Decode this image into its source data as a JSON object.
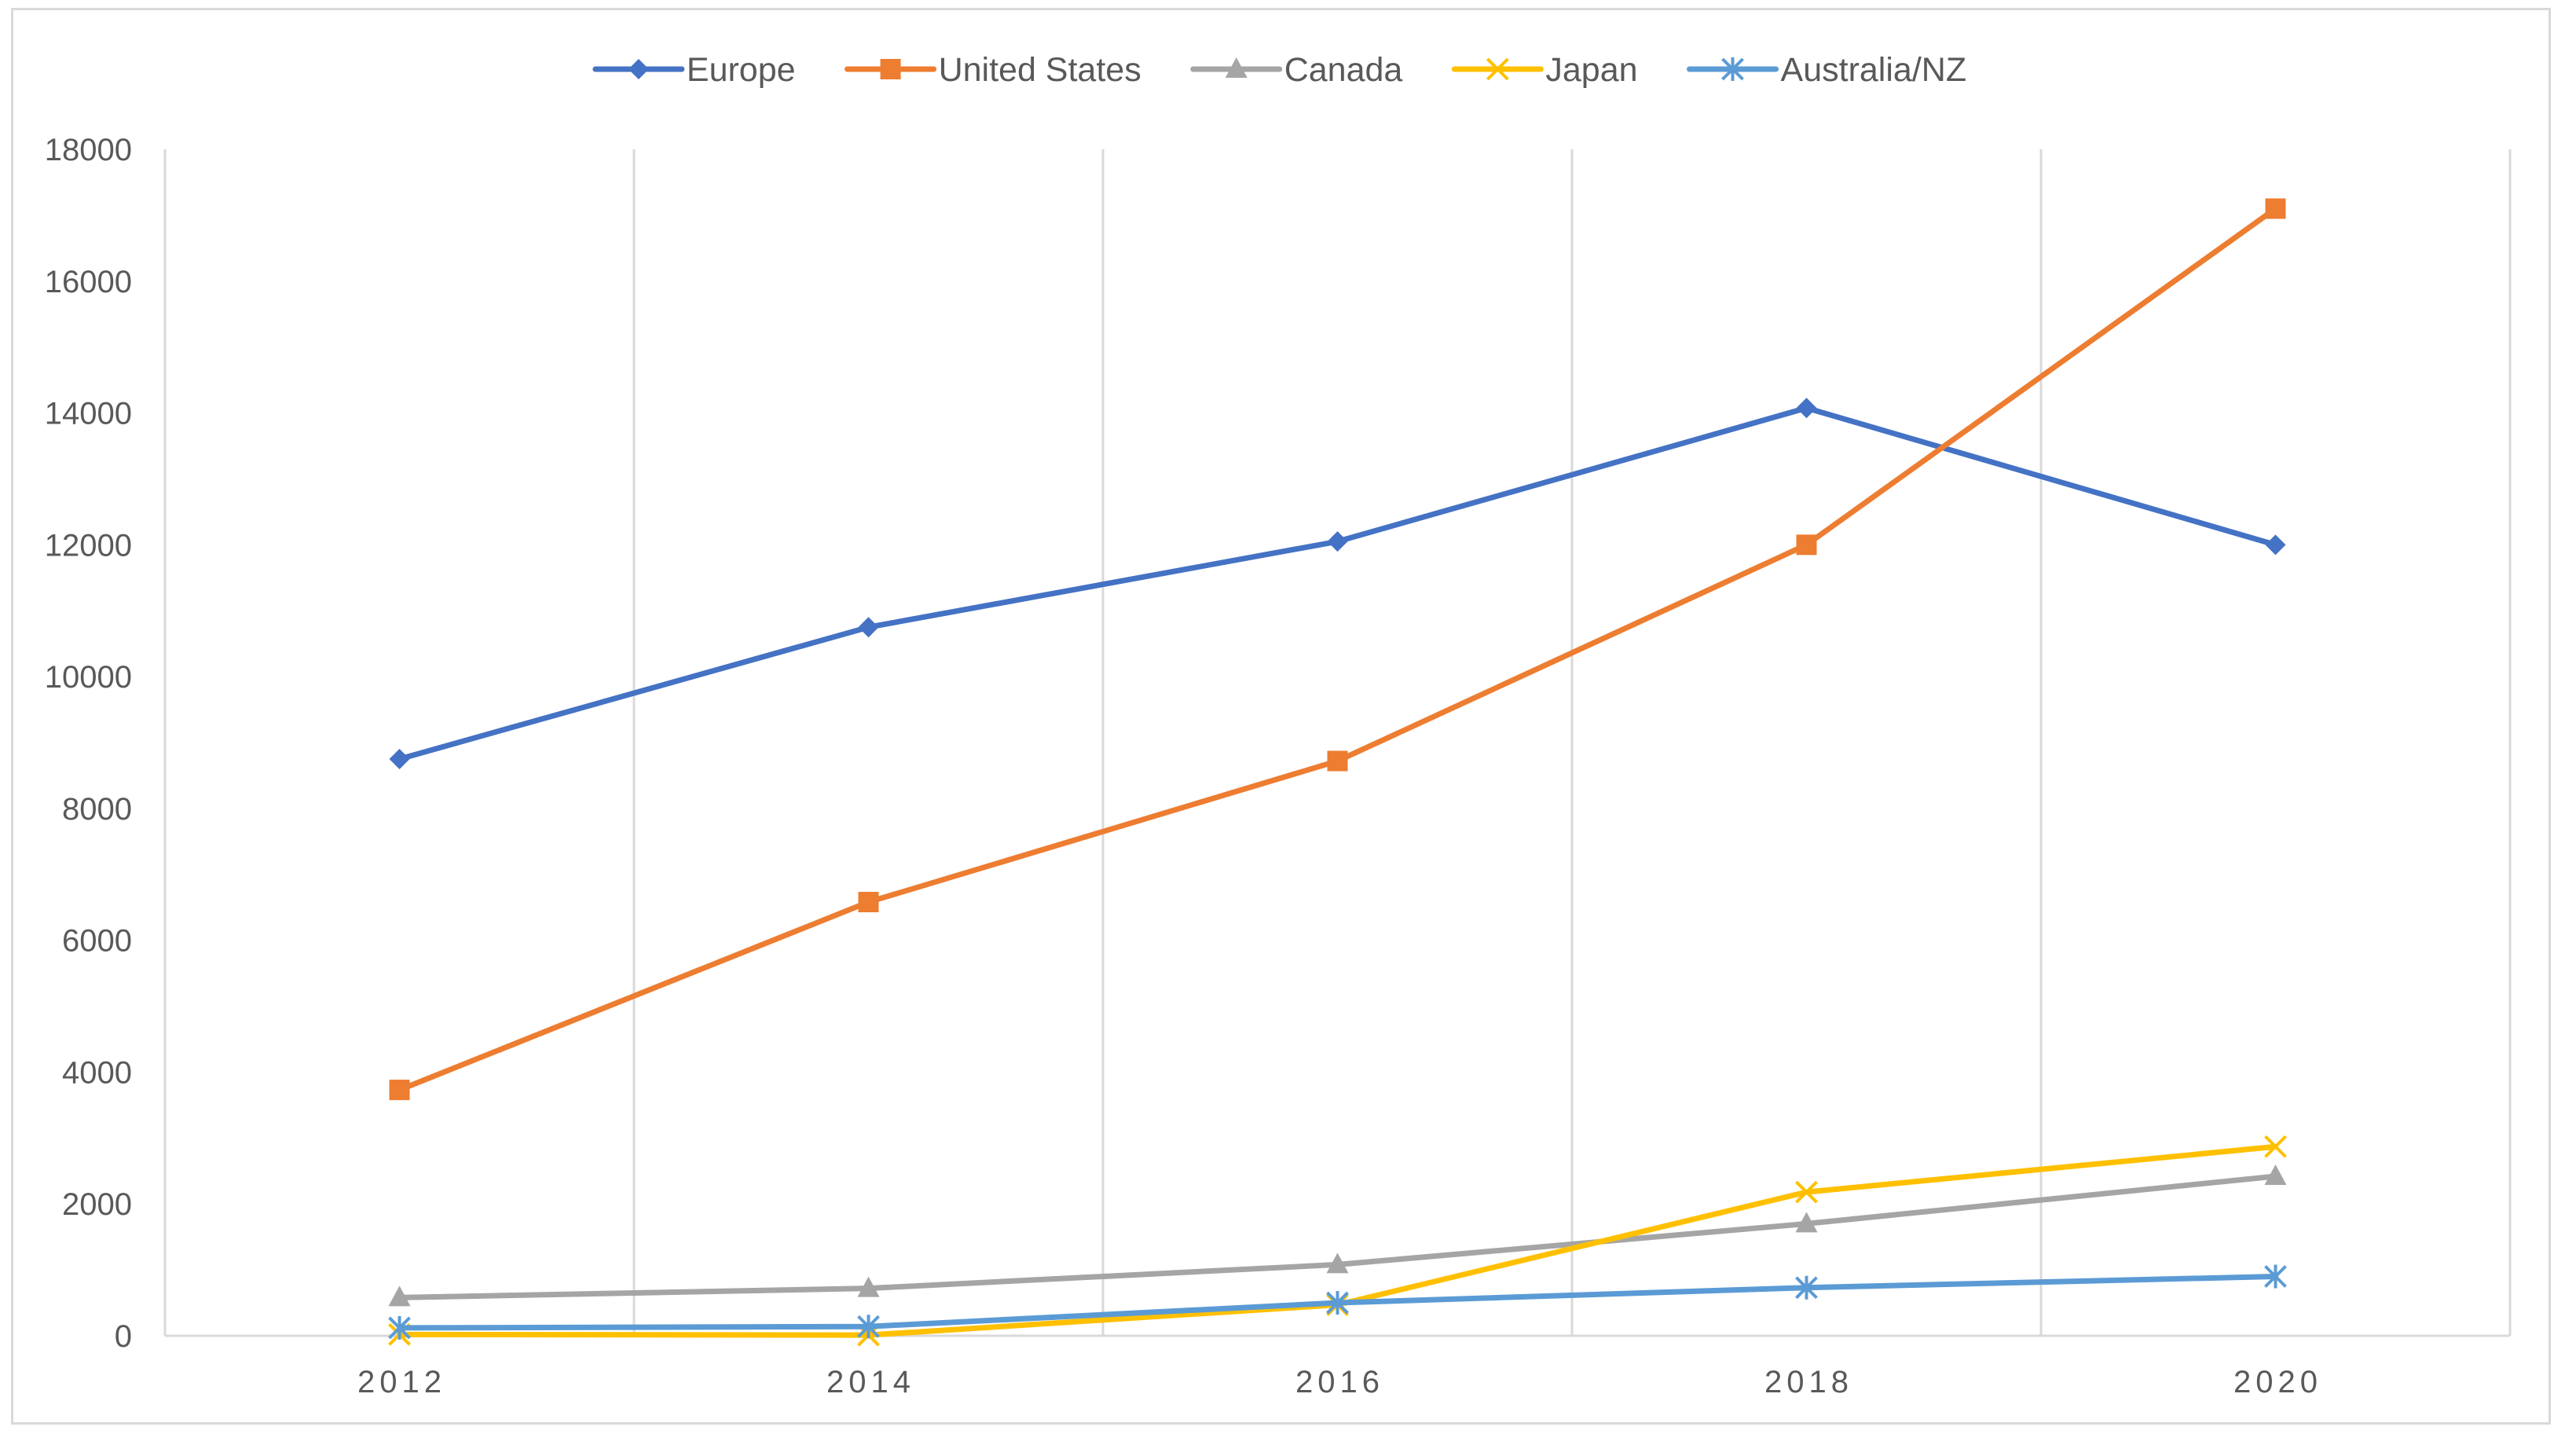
{
  "chart_data": {
    "type": "line",
    "title": "",
    "xlabel": "",
    "ylabel": "",
    "x": [
      2012,
      2014,
      2016,
      2018,
      2020
    ],
    "x_tick_labels": [
      "2012",
      "2014",
      "2016",
      "2018",
      "2020"
    ],
    "xlim": [
      2011,
      2021
    ],
    "ylim": [
      0,
      18000
    ],
    "y_ticks": [
      0,
      2000,
      4000,
      6000,
      8000,
      10000,
      12000,
      14000,
      16000,
      18000
    ],
    "y_tick_labels": [
      "0",
      "2000",
      "4000",
      "6000",
      "8000",
      "10000",
      "12000",
      "14000",
      "16000",
      "18000"
    ],
    "grid": "vertical",
    "legend_position": "top",
    "series": [
      {
        "name": "Europe",
        "color": "#4472c4",
        "marker": "diamond",
        "values": [
          8750,
          10750,
          12050,
          14075,
          12000
        ]
      },
      {
        "name": "United States",
        "color": "#ed7d31",
        "marker": "square",
        "values": [
          3730,
          6580,
          8720,
          12000,
          17100
        ]
      },
      {
        "name": "Canada",
        "color": "#a5a5a5",
        "marker": "triangle",
        "values": [
          580,
          720,
          1080,
          1700,
          2420
        ]
      },
      {
        "name": "Japan",
        "color": "#ffc000",
        "marker": "x",
        "values": [
          20,
          10,
          470,
          2180,
          2870
        ]
      },
      {
        "name": "Australia/NZ",
        "color": "#5b9bd5",
        "marker": "asterisk",
        "values": [
          120,
          140,
          500,
          730,
          900
        ]
      }
    ]
  }
}
